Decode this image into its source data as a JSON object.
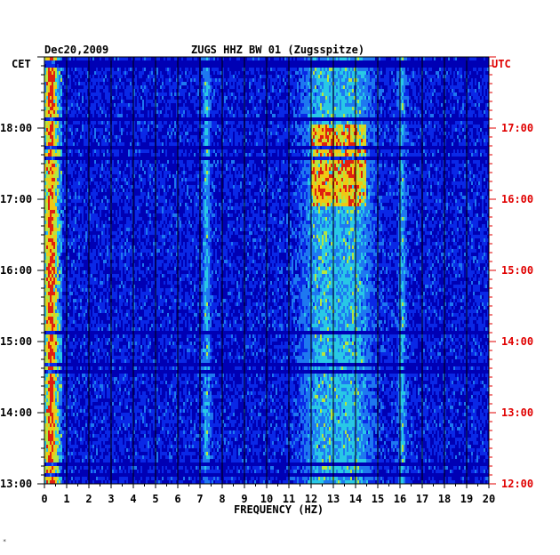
{
  "chart_data": {
    "type": "heatmap",
    "date": "Dec20,2009",
    "station": "ZUGS HHZ BW 01 (Zugsspitze)",
    "left_axis_label": "CET",
    "right_axis_label": "UTC",
    "xlabel": "FREQUENCY (HZ)",
    "xlim": [
      0,
      20
    ],
    "x_ticks": [
      "0",
      "1",
      "2",
      "3",
      "4",
      "5",
      "6",
      "7",
      "8",
      "9",
      "10",
      "11",
      "12",
      "13",
      "14",
      "15",
      "16",
      "17",
      "18",
      "19",
      "20"
    ],
    "y_ticks_cet": [
      "18:00",
      "17:00",
      "16:00",
      "15:00",
      "14:00",
      "13:00"
    ],
    "y_ticks_utc": [
      "17:00",
      "16:00",
      "15:00",
      "14:00",
      "13:00",
      "12:00"
    ],
    "y_range_cet": [
      "13:00",
      "18:48"
    ],
    "colormap": [
      "#0000b4",
      "#0a28e6",
      "#1e78f0",
      "#28c8e6",
      "#b4e640",
      "#f0c814",
      "#e02010"
    ],
    "dominant_bands_hz": [
      0.3,
      7.3,
      12.5,
      13.9,
      16.1
    ]
  },
  "footer_mark": "*"
}
